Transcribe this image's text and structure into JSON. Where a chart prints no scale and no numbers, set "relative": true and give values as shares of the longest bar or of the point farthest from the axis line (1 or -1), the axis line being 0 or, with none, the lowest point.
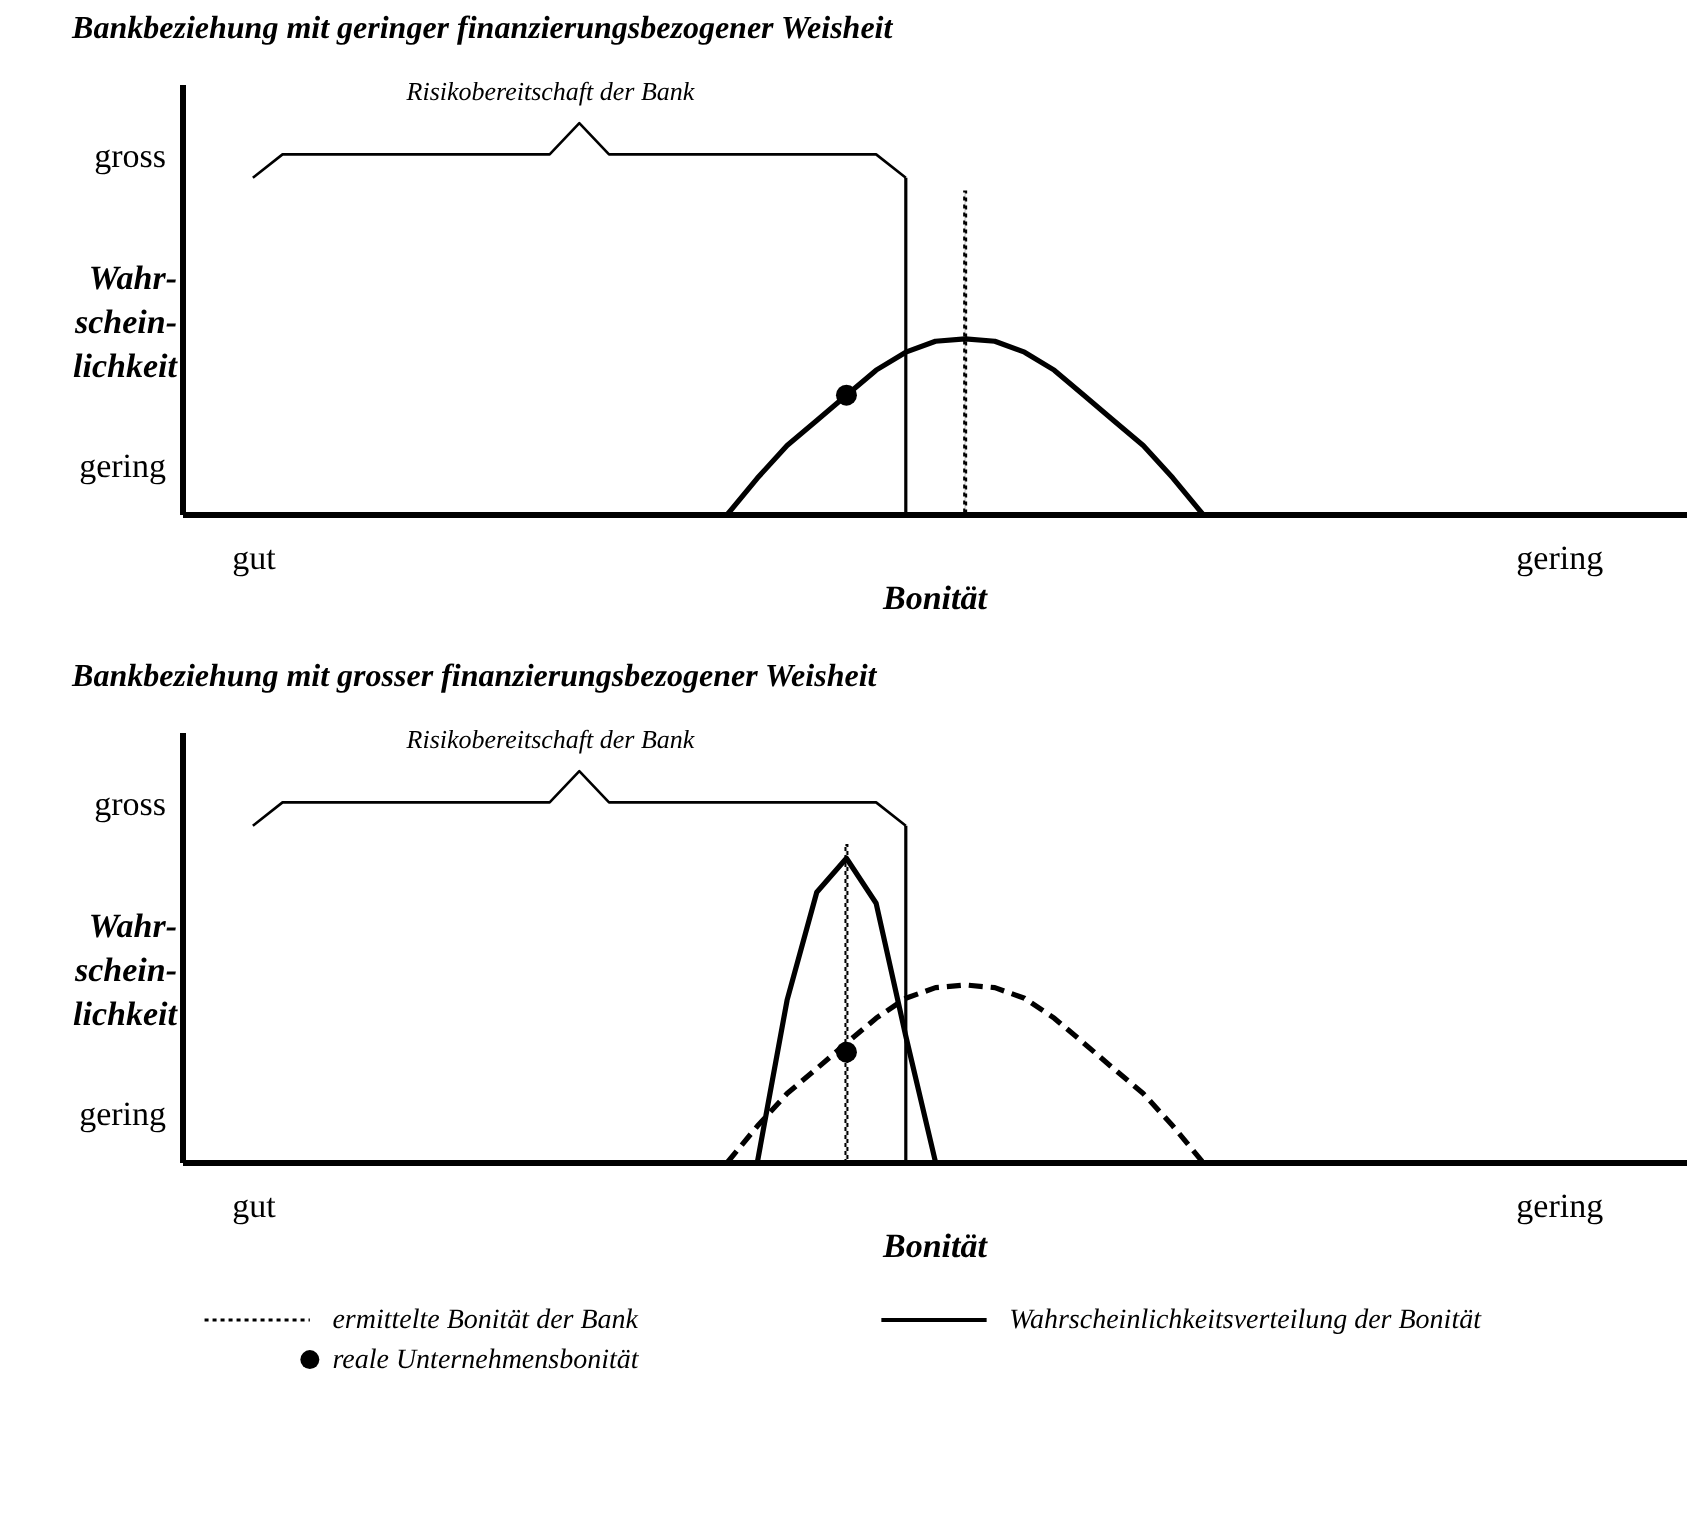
{
  "chart_data": [
    {
      "type": "line",
      "title": "Bankbeziehung mit  geringer finanzierungsbezogener Weisheit",
      "xlabel": "Bonität",
      "ylabel": "Wahr-\nschein-\nlichkeit",
      "relative": true,
      "legend": false,
      "categories": [
        "gut",
        null,
        null,
        null,
        null,
        null,
        null,
        null,
        null,
        null,
        null,
        null,
        null,
        null,
        null,
        null,
        null,
        null,
        null,
        null,
        null,
        null,
        null,
        null,
        null,
        null,
        null,
        null,
        null,
        null,
        null,
        null,
        null,
        null,
        null,
        null,
        null,
        null,
        null,
        null,
        null,
        null,
        null,
        null,
        "gering"
      ],
      "annotations": [
        "gross",
        "gering",
        "Risikobereitschaft der Bank"
      ],
      "series": [
        {
          "line_style": "solid",
          "color": "#000000",
          "values": [
            0.86,
            0.92,
            0.92,
            0.92,
            0.92,
            0.92,
            0.92,
            0.92,
            0.92,
            0.92,
            0.92,
            1,
            0.92,
            0.92,
            0.92,
            0.92,
            0.92,
            0.92,
            0.92,
            0.92,
            0.92,
            0.92,
            0.86,
            null,
            null,
            null,
            null,
            null,
            null,
            null,
            null,
            null,
            null,
            null,
            null,
            null,
            null,
            null,
            null,
            null,
            null,
            null,
            null,
            null,
            null
          ]
        },
        {
          "type": "bar",
          "line_style": "solid",
          "color": "#000000",
          "values": [
            null,
            null,
            null,
            null,
            null,
            null,
            null,
            null,
            null,
            null,
            null,
            null,
            null,
            null,
            null,
            null,
            null,
            null,
            null,
            null,
            null,
            null,
            0.86,
            null,
            null,
            null,
            null,
            null,
            null,
            null,
            null,
            null,
            null,
            null,
            null,
            null,
            null,
            null,
            null,
            null,
            null,
            null,
            null,
            null,
            null
          ]
        },
        {
          "type": "bar",
          "line_style": "dotted",
          "color": "#000000",
          "values": [
            null,
            null,
            null,
            null,
            null,
            null,
            null,
            null,
            null,
            null,
            null,
            null,
            null,
            null,
            null,
            null,
            null,
            null,
            null,
            null,
            null,
            null,
            null,
            null,
            0.825,
            null,
            null,
            null,
            null,
            null,
            null,
            null,
            null,
            null,
            null,
            null,
            null,
            null,
            null,
            null,
            null,
            null,
            null,
            null,
            null
          ]
        },
        {
          "line_style": "solid",
          "color": "#000000",
          "values": [
            null,
            null,
            null,
            null,
            null,
            null,
            null,
            null,
            null,
            null,
            null,
            null,
            null,
            null,
            null,
            null,
            0,
            0.092,
            0.175,
            0.239,
            0.304,
            0.368,
            0.414,
            0.442,
            0.448,
            0.442,
            0.414,
            0.368,
            0.304,
            0.239,
            0.175,
            0.092,
            0,
            null,
            null,
            null,
            null,
            null,
            null,
            null,
            null,
            null,
            null,
            null,
            null
          ]
        },
        {
          "type": "scatter",
          "color": "#000000",
          "values": [
            null,
            null,
            null,
            null,
            null,
            null,
            null,
            null,
            null,
            null,
            null,
            null,
            null,
            null,
            null,
            null,
            null,
            null,
            null,
            null,
            0.304,
            null,
            null,
            null,
            null,
            null,
            null,
            null,
            null,
            null,
            null,
            null,
            null,
            null,
            null,
            null,
            null,
            null,
            null,
            null,
            null,
            null,
            null,
            null,
            null
          ]
        }
      ]
    },
    {
      "type": "line",
      "title": "Bankbeziehung mit  grosser finanzierungsbezogener Weisheit",
      "xlabel": "Bonität",
      "ylabel": "Wahr-\nschein-\nlichkeit",
      "relative": true,
      "legend": "bottom",
      "categories": [
        "gut",
        null,
        null,
        null,
        null,
        null,
        null,
        null,
        null,
        null,
        null,
        null,
        null,
        null,
        null,
        null,
        null,
        null,
        null,
        null,
        null,
        null,
        null,
        null,
        null,
        null,
        null,
        null,
        null,
        null,
        null,
        null,
        null,
        null,
        null,
        null,
        null,
        null,
        null,
        null,
        null,
        null,
        null,
        null,
        "gering"
      ],
      "annotations": [
        "gross",
        "gering",
        "Risikobereitschaft der Bank"
      ],
      "series": [
        {
          "line_style": "solid",
          "color": "#000000",
          "values": [
            0.86,
            0.92,
            0.92,
            0.92,
            0.92,
            0.92,
            0.92,
            0.92,
            0.92,
            0.92,
            0.92,
            1,
            0.92,
            0.92,
            0.92,
            0.92,
            0.92,
            0.92,
            0.92,
            0.92,
            0.92,
            0.92,
            0.86,
            null,
            null,
            null,
            null,
            null,
            null,
            null,
            null,
            null,
            null,
            null,
            null,
            null,
            null,
            null,
            null,
            null,
            null,
            null,
            null,
            null,
            null
          ]
        },
        {
          "type": "bar",
          "line_style": "solid",
          "color": "#000000",
          "values": [
            null,
            null,
            null,
            null,
            null,
            null,
            null,
            null,
            null,
            null,
            null,
            null,
            null,
            null,
            null,
            null,
            null,
            null,
            null,
            null,
            null,
            null,
            0.86,
            null,
            null,
            null,
            null,
            null,
            null,
            null,
            null,
            null,
            null,
            null,
            null,
            null,
            null,
            null,
            null,
            null,
            null,
            null,
            null,
            null,
            null
          ]
        },
        {
          "name": "ermittelte Bonität der Bank",
          "type": "bar",
          "line_style": "dotted",
          "color": "#000000",
          "values": [
            null,
            null,
            null,
            null,
            null,
            null,
            null,
            null,
            null,
            null,
            null,
            null,
            null,
            null,
            null,
            null,
            null,
            null,
            null,
            null,
            0.811,
            null,
            null,
            null,
            null,
            null,
            null,
            null,
            null,
            null,
            null,
            null,
            null,
            null,
            null,
            null,
            null,
            null,
            null,
            null,
            null,
            null,
            null,
            null,
            null
          ]
        },
        {
          "name": "Wahrscheinlichkeitsverteilung der Bonität",
          "line_style": "solid",
          "color": "#000000",
          "values": [
            null,
            null,
            null,
            null,
            null,
            null,
            null,
            null,
            null,
            null,
            null,
            null,
            null,
            null,
            null,
            null,
            null,
            0,
            0.414,
            0.69,
            0.777,
            0.662,
            0.322,
            0,
            null,
            null,
            null,
            null,
            null,
            null,
            null,
            null,
            null,
            null,
            null,
            null,
            null,
            null,
            null,
            null,
            null,
            null,
            null,
            null,
            null
          ]
        },
        {
          "line_style": "dashed",
          "color": "#000000",
          "values": [
            null,
            null,
            null,
            null,
            null,
            null,
            null,
            null,
            null,
            null,
            null,
            null,
            null,
            null,
            null,
            null,
            0,
            0.092,
            0.175,
            0.239,
            0.304,
            0.368,
            0.419,
            0.446,
            0.453,
            0.446,
            0.419,
            0.368,
            0.304,
            0.239,
            0.175,
            0.092,
            0,
            null,
            null,
            null,
            null,
            null,
            null,
            null,
            null,
            null,
            null,
            null,
            null
          ]
        },
        {
          "name": "reale Unternehmensbonität",
          "type": "scatter",
          "color": "#000000",
          "values": [
            null,
            null,
            null,
            null,
            null,
            null,
            null,
            null,
            null,
            null,
            null,
            null,
            null,
            null,
            null,
            null,
            null,
            null,
            null,
            null,
            0.281,
            null,
            null,
            null,
            null,
            null,
            null,
            null,
            null,
            null,
            null,
            null,
            null,
            null,
            null,
            null,
            null,
            null,
            null,
            null,
            null,
            null,
            null,
            null,
            null
          ]
        }
      ]
    }
  ]
}
